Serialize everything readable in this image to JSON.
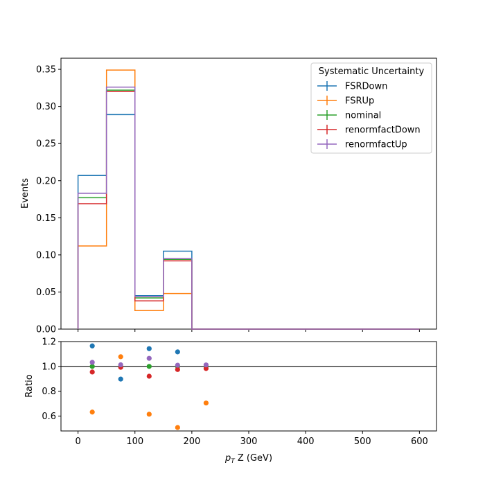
{
  "chart_data": [
    {
      "type": "line",
      "style": "step-histogram",
      "xlabel_main": "p",
      "xlabel_sub": "T",
      "xlabel_rest": " Z (GeV)",
      "ylabel": "Events",
      "xlim": [
        -30,
        630
      ],
      "ylim": [
        0,
        0.365
      ],
      "xticks": [
        "0",
        "100",
        "200",
        "300",
        "400",
        "500",
        "600"
      ],
      "xtick_values": [
        0,
        100,
        200,
        300,
        400,
        500,
        600
      ],
      "yticks": [
        "0.00",
        "0.05",
        "0.10",
        "0.15",
        "0.20",
        "0.25",
        "0.30",
        "0.35"
      ],
      "ytick_values": [
        0,
        0.05,
        0.1,
        0.15,
        0.2,
        0.25,
        0.3,
        0.35
      ],
      "bin_edges": [
        0,
        50,
        100,
        150,
        200,
        250,
        300,
        350,
        400,
        450,
        500,
        550,
        600
      ],
      "legend": {
        "title": "Systematic Uncertainty",
        "placement": "top-right"
      },
      "series": [
        {
          "name": "FSRDown",
          "color": "#1f77b4",
          "values": [
            0.207,
            0.289,
            0.045,
            0.105,
            0,
            0,
            0,
            0,
            0,
            0,
            0,
            0
          ]
        },
        {
          "name": "FSRUp",
          "color": "#ff7f0e",
          "values": [
            0.112,
            0.349,
            0.025,
            0.048,
            0,
            0,
            0,
            0,
            0,
            0,
            0,
            0
          ]
        },
        {
          "name": "nominal",
          "color": "#2ca02c",
          "values": [
            0.177,
            0.322,
            0.042,
            0.094,
            0,
            0,
            0,
            0,
            0,
            0,
            0,
            0
          ]
        },
        {
          "name": "renormfactDown",
          "color": "#d62728",
          "values": [
            0.169,
            0.32,
            0.038,
            0.092,
            0,
            0,
            0,
            0,
            0,
            0,
            0,
            0
          ]
        },
        {
          "name": "renormfactUp",
          "color": "#9467bd",
          "values": [
            0.183,
            0.326,
            0.044,
            0.095,
            0,
            0,
            0,
            0,
            0,
            0,
            0,
            0
          ]
        }
      ]
    },
    {
      "type": "scatter",
      "ylabel": "Ratio",
      "xlim": [
        -30,
        630
      ],
      "ylim": [
        0.48,
        1.2
      ],
      "reference_line": 1.0,
      "yticks": [
        "0.6",
        "0.8",
        "1.0",
        "1.2"
      ],
      "ytick_values": [
        0.6,
        0.8,
        1.0,
        1.2
      ],
      "x": [
        25,
        75,
        125,
        175,
        225
      ],
      "series": [
        {
          "name": "FSRDown",
          "color": "#1f77b4",
          "values": [
            1.165,
            0.898,
            1.143,
            1.117,
            null
          ]
        },
        {
          "name": "FSRUp",
          "color": "#ff7f0e",
          "values": [
            0.632,
            1.078,
            0.615,
            0.508,
            0.705
          ]
        },
        {
          "name": "nominal",
          "color": "#2ca02c",
          "values": [
            1.0,
            1.0,
            1.0,
            1.0,
            1.0
          ]
        },
        {
          "name": "renormfactDown",
          "color": "#d62728",
          "values": [
            0.955,
            0.993,
            0.921,
            0.975,
            0.983
          ]
        },
        {
          "name": "renormfactUp",
          "color": "#9467bd",
          "values": [
            1.033,
            1.013,
            1.065,
            1.01,
            1.012
          ]
        }
      ]
    }
  ]
}
